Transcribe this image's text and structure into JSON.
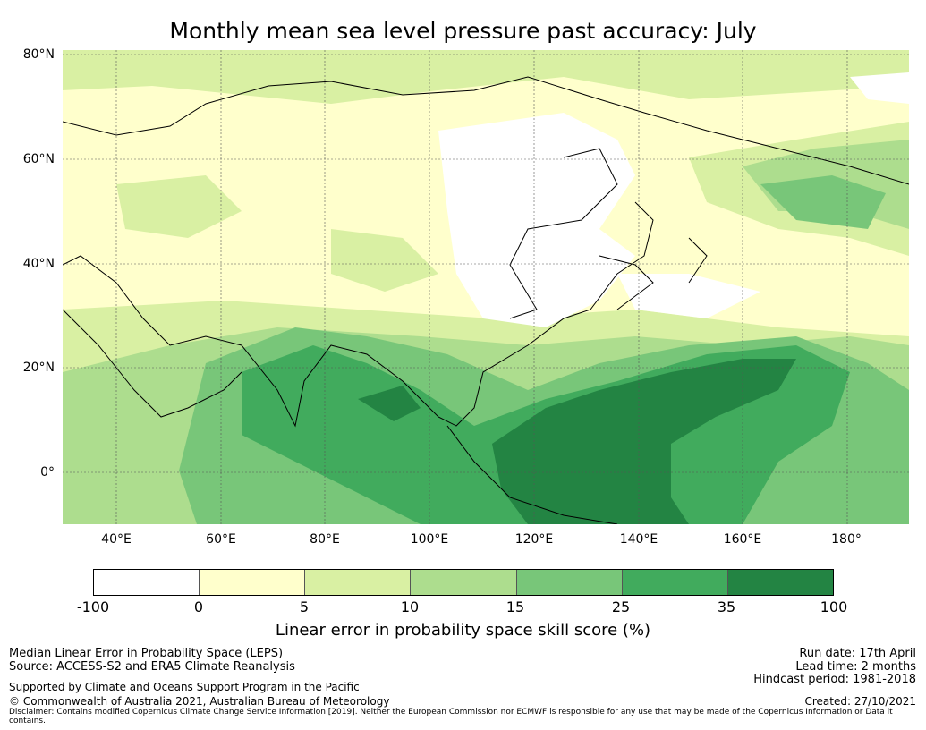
{
  "title": "Monthly mean sea level pressure past accuracy: July",
  "map": {
    "lat_labels": [
      "80°N",
      "60°N",
      "40°N",
      "20°N",
      "0°"
    ],
    "lon_labels": [
      "40°E",
      "60°E",
      "80°E",
      "100°E",
      "120°E",
      "140°E",
      "160°E",
      "180°"
    ]
  },
  "colorbar": {
    "label": "Linear error in probability space skill score (%)",
    "ticks": [
      "-100",
      "0",
      "5",
      "10",
      "15",
      "25",
      "35",
      "100"
    ],
    "colors": [
      "#ffffff",
      "#ffffcc",
      "#d9f0a3",
      "#addd8e",
      "#78c679",
      "#41ab5d",
      "#238443"
    ]
  },
  "footer": {
    "left": [
      "Median Linear Error in Probability Space (LEPS)",
      "Source: ACCESS-S2 and ERA5 Climate Reanalysis",
      "Supported by Climate and Oceans Support Program in the Pacific",
      "© Commonwealth of Australia 2021, Australian Bureau of Meteorology"
    ],
    "right": [
      "Run date: 17th April",
      "Lead time: 2 months",
      "Hindcast period: 1981-2018",
      "Created: 27/10/2021"
    ],
    "disclaimer": "Disclaimer: Contains modified Copernicus Climate Change Service Information [2019]. Neither the European Commission nor ECMWF is responsible for any use that may be made of the Copernicus Information or Data it contains."
  }
}
